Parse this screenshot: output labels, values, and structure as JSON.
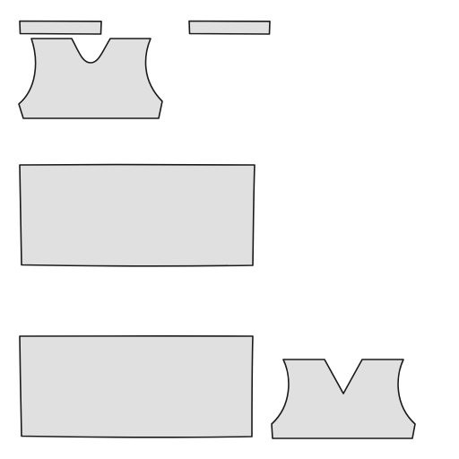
{
  "colors": {
    "background": "#ffffff",
    "piece_fill": "#e0e0e0",
    "piece_stroke": "#1a1a1a"
  },
  "pieces": [
    {
      "kind": "neck-strip"
    },
    {
      "kind": "neck-strip"
    },
    {
      "kind": "front-bodice-scoop-neck"
    },
    {
      "kind": "rectangular-panel"
    },
    {
      "kind": "rectangular-panel"
    },
    {
      "kind": "back-bodice-v-neck"
    }
  ]
}
